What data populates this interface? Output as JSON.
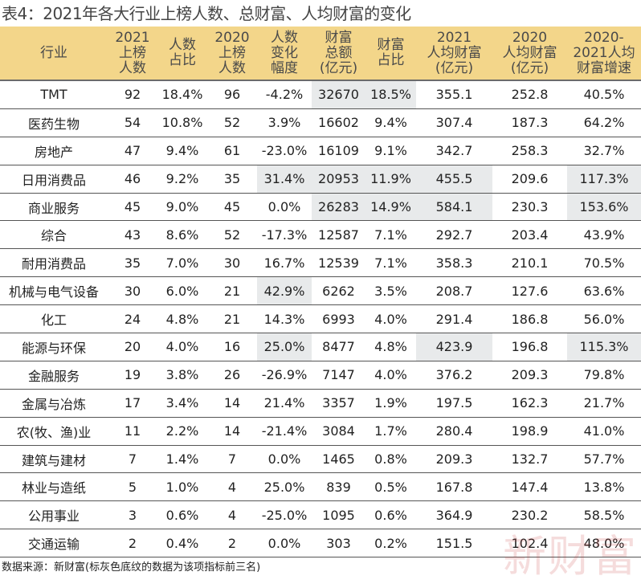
{
  "title": "表4：2021年各大行业上榜人数、总财富、人均财富的变化",
  "headers": [
    "行业",
    "2021\n上榜\n人数",
    "人数\n占比",
    "2020\n上榜\n人数",
    "人数\n变化\n幅度",
    "财富\n总额\n(亿元)",
    "财富\n占比",
    "2021\n人均财富\n(亿元)",
    "2020\n人均财富\n(亿元)",
    "2020-\n2021人均\n财富增速"
  ],
  "rows": [
    {
      "cells": [
        "TMT",
        "92",
        "18.4%",
        "96",
        "-4.2%",
        "32670",
        "18.5%",
        "355.1",
        "252.8",
        "40.5%"
      ],
      "gray": [
        5,
        6
      ]
    },
    {
      "cells": [
        "医药生物",
        "54",
        "10.8%",
        "52",
        "3.9%",
        "16602",
        "9.4%",
        "307.4",
        "187.3",
        "64.2%"
      ],
      "gray": []
    },
    {
      "cells": [
        "房地产",
        "47",
        "9.4%",
        "61",
        "-23.0%",
        "16109",
        "9.1%",
        "342.7",
        "258.3",
        "32.7%"
      ],
      "gray": []
    },
    {
      "cells": [
        "日用消费品",
        "46",
        "9.2%",
        "35",
        "31.4%",
        "20953",
        "11.9%",
        "455.5",
        "209.6",
        "117.3%"
      ],
      "gray": [
        4,
        5,
        6,
        7,
        9
      ]
    },
    {
      "cells": [
        "商业服务",
        "45",
        "9.0%",
        "45",
        "0.0%",
        "26283",
        "14.9%",
        "584.1",
        "230.3",
        "153.6%"
      ],
      "gray": [
        5,
        6,
        7,
        9
      ]
    },
    {
      "cells": [
        "综合",
        "43",
        "8.6%",
        "52",
        "-17.3%",
        "12587",
        "7.1%",
        "292.7",
        "203.4",
        "43.9%"
      ],
      "gray": []
    },
    {
      "cells": [
        "耐用消费品",
        "35",
        "7.0%",
        "30",
        "16.7%",
        "12539",
        "7.1%",
        "358.3",
        "210.1",
        "70.5%"
      ],
      "gray": []
    },
    {
      "cells": [
        "机械与电气设备",
        "30",
        "6.0%",
        "21",
        "42.9%",
        "6262",
        "3.5%",
        "208.7",
        "127.6",
        "63.6%"
      ],
      "gray": [
        4
      ]
    },
    {
      "cells": [
        "化工",
        "24",
        "4.8%",
        "21",
        "14.3%",
        "6993",
        "4.0%",
        "291.4",
        "186.8",
        "56.0%"
      ],
      "gray": []
    },
    {
      "cells": [
        "能源与环保",
        "20",
        "4.0%",
        "16",
        "25.0%",
        "8477",
        "4.8%",
        "423.9",
        "196.8",
        "115.3%"
      ],
      "gray": [
        4,
        7,
        9
      ]
    },
    {
      "cells": [
        "金融服务",
        "19",
        "3.8%",
        "26",
        "-26.9%",
        "7147",
        "4.0%",
        "376.2",
        "209.3",
        "79.8%"
      ],
      "gray": []
    },
    {
      "cells": [
        "金属与冶炼",
        "17",
        "3.4%",
        "14",
        "21.4%",
        "3357",
        "1.9%",
        "197.5",
        "162.3",
        "21.7%"
      ],
      "gray": []
    },
    {
      "cells": [
        "农(牧、渔)业",
        "11",
        "2.2%",
        "14",
        "-21.4%",
        "3084",
        "1.7%",
        "280.4",
        "198.9",
        "41.0%"
      ],
      "gray": []
    },
    {
      "cells": [
        "建筑与建材",
        "7",
        "1.4%",
        "7",
        "0.0%",
        "1465",
        "0.8%",
        "209.3",
        "132.7",
        "57.7%"
      ],
      "gray": []
    },
    {
      "cells": [
        "林业与造纸",
        "5",
        "1.0%",
        "4",
        "25.0%",
        "839",
        "0.5%",
        "167.8",
        "147.4",
        "13.8%"
      ],
      "gray": []
    },
    {
      "cells": [
        "公用事业",
        "3",
        "0.6%",
        "4",
        "-25.0%",
        "1095",
        "0.6%",
        "364.9",
        "230.2",
        "58.5%"
      ],
      "gray": []
    },
    {
      "cells": [
        "交通运输",
        "2",
        "0.4%",
        "2",
        "0.0%",
        "303",
        "0.2%",
        "151.5",
        "102.4",
        "48.0%"
      ],
      "gray": []
    }
  ],
  "footnote": "数据来源：新财富(标灰色底纹的数据为该项指标前三名)",
  "watermark": "新财富",
  "colors": {
    "header_bg": "#f3d68a",
    "highlight_bg": "#e8eaeb"
  }
}
